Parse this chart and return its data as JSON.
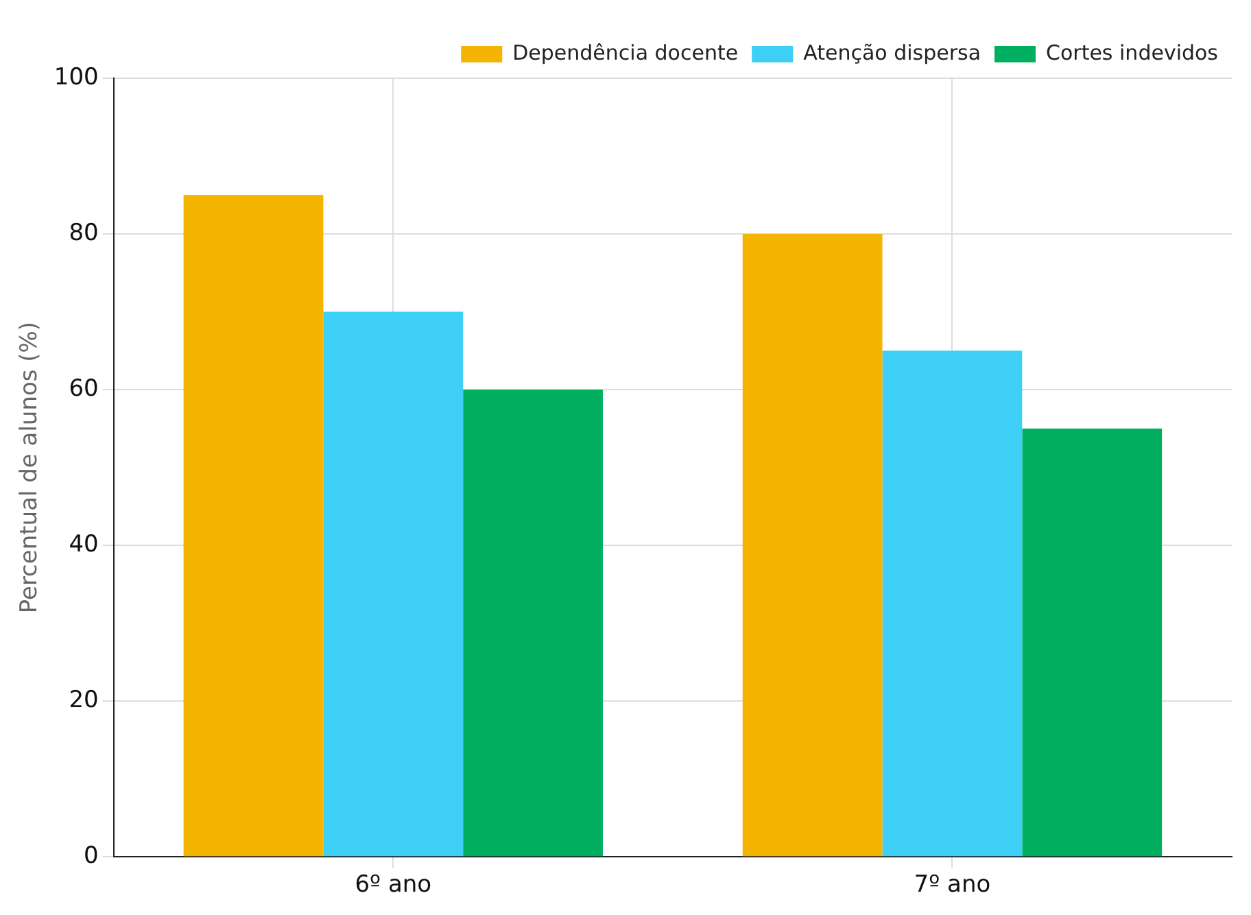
{
  "chart_data": {
    "type": "bar",
    "ylabel": "Percentual de alunos (%)",
    "categories": [
      "6º ano",
      "7º ano"
    ],
    "series": [
      {
        "name": "Dependência docente",
        "color": "#f4b400",
        "values": [
          85,
          80
        ]
      },
      {
        "name": "Atenção dispersa",
        "color": "#3dcff5",
        "values": [
          70,
          65
        ]
      },
      {
        "name": "Cortes indevidos",
        "color": "#00b060",
        "values": [
          60,
          55
        ]
      }
    ],
    "ylim": [
      0,
      100
    ],
    "yticks": [
      0,
      20,
      40,
      60,
      80,
      100
    ],
    "grid": true,
    "legend": "top right"
  }
}
